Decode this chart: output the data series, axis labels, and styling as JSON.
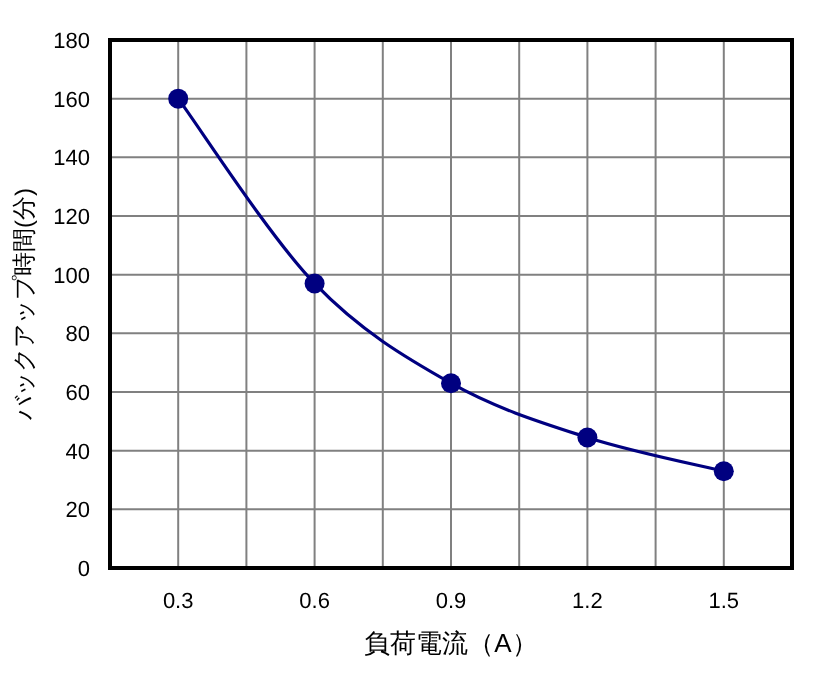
{
  "chart_data": {
    "type": "line",
    "xlabel": "負荷電流（A）",
    "ylabel": "バックアップ時間(分)",
    "x": [
      0.3,
      0.6,
      0.9,
      1.2,
      1.5
    ],
    "series": [
      {
        "color": "#000080",
        "values": [
          160,
          97,
          63,
          44.5,
          33
        ]
      }
    ],
    "xlim": [
      0.15,
      1.65
    ],
    "xticks": [
      {
        "value": 0.15,
        "label": null
      },
      0.3,
      {
        "value": 0.45,
        "label": null
      },
      0.6,
      {
        "value": 0.75,
        "label": null
      },
      0.9,
      {
        "value": 1.05,
        "label": null
      },
      1.2,
      {
        "value": 1.35,
        "label": null
      },
      1.5,
      {
        "value": 1.65,
        "label": null
      }
    ],
    "ylim": [
      0,
      180
    ],
    "yticks": [
      0,
      20,
      40,
      60,
      80,
      100,
      120,
      140,
      160,
      180
    ],
    "grid": true,
    "marker": "circle",
    "line_style": "solid"
  }
}
